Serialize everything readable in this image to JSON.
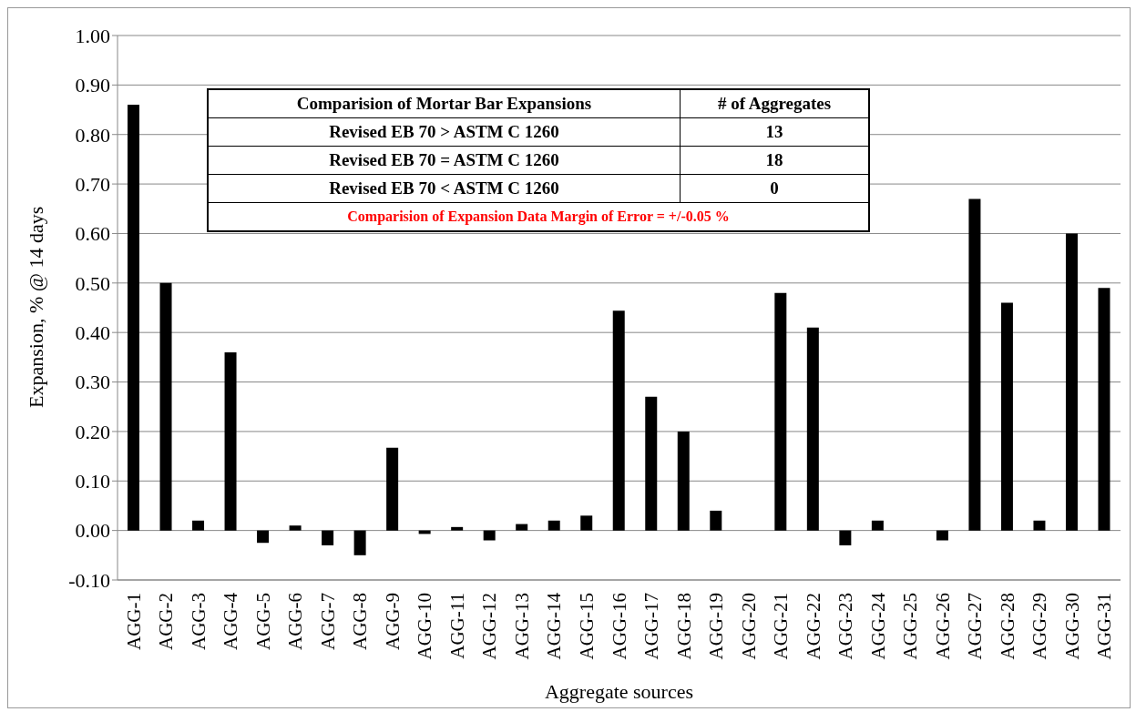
{
  "chart_data": {
    "type": "bar",
    "xlabel": "Aggregate sources",
    "ylabel": "Expansion, % @ 14 days",
    "categories": [
      "AGG-1",
      "AGG-2",
      "AGG-3",
      "AGG-4",
      "AGG-5",
      "AGG-6",
      "AGG-7",
      "AGG-8",
      "AGG-9",
      "AGG-10",
      "AGG-11",
      "AGG-12",
      "AGG-13",
      "AGG-14",
      "AGG-15",
      "AGG-16",
      "AGG-17",
      "AGG-18",
      "AGG-19",
      "AGG-20",
      "AGG-21",
      "AGG-22",
      "AGG-23",
      "AGG-24",
      "AGG-25",
      "AGG-26",
      "AGG-27",
      "AGG-28",
      "AGG-29",
      "AGG-30",
      "AGG-31"
    ],
    "values": [
      0.86,
      0.5,
      0.02,
      0.36,
      -0.025,
      0.01,
      -0.03,
      -0.05,
      0.167,
      -0.007,
      0.007,
      -0.02,
      0.013,
      0.02,
      0.03,
      0.444,
      0.27,
      0.2,
      0.04,
      0,
      0.48,
      0.41,
      -0.03,
      0.02,
      0,
      -0.02,
      0.67,
      0.46,
      0.02,
      0.6,
      0.49
    ],
    "color": "#000000",
    "ylim": [
      -0.1,
      1.0
    ],
    "yticks": [
      {
        "value": -0.1,
        "label": "-0.10"
      },
      {
        "value": 0,
        "label": "0.00"
      },
      {
        "value": 0.1,
        "label": "0.10"
      },
      {
        "value": 0.2,
        "label": "0.20"
      },
      {
        "value": 0.3,
        "label": "0.30"
      },
      {
        "value": 0.4,
        "label": "0.40"
      },
      {
        "value": 0.5,
        "label": "0.50"
      },
      {
        "value": 0.6,
        "label": "0.60"
      },
      {
        "value": 0.7,
        "label": "0.70"
      },
      {
        "value": 0.8,
        "label": "0.80"
      },
      {
        "value": 0.9,
        "label": "0.90"
      },
      {
        "value": 1.0,
        "label": "1.00"
      }
    ],
    "grid": "y",
    "legend": false,
    "annotations": [
      "Comparision of Mortar Bar Expansions",
      "# of Aggregates",
      "Revised EB 70 > ASTM C 1260",
      "13",
      "Revised EB 70 = ASTM C 1260",
      "18",
      "Revised EB 70 < ASTM C 1260",
      "0",
      "Comparision of Expansion Data Margin of Error = +/-0.05 %"
    ]
  }
}
